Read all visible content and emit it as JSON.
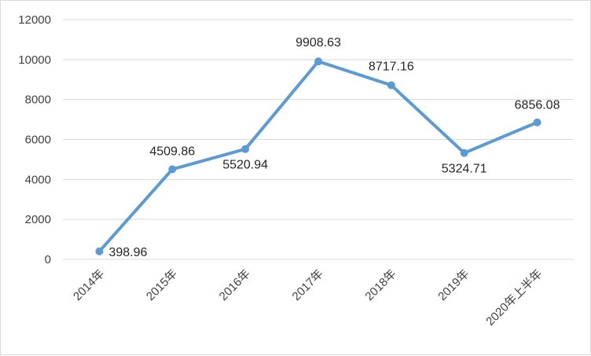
{
  "chart_data": {
    "type": "line",
    "title": "",
    "xlabel": "",
    "ylabel": "",
    "categories": [
      "2014年",
      "2015年",
      "2016年",
      "2017年",
      "2018年",
      "2019年",
      "2020年上半年"
    ],
    "values": [
      398.96,
      4509.86,
      5520.94,
      9908.63,
      8717.16,
      5324.71,
      6856.08
    ],
    "data_labels": [
      "398.96",
      "4509.86",
      "5520.94",
      "9908.63",
      "8717.16",
      "5324.71",
      "6856.08"
    ],
    "ylim": [
      0,
      12000
    ],
    "yticks": [
      0,
      2000,
      4000,
      6000,
      8000,
      10000,
      12000
    ],
    "ytick_labels": [
      "0",
      "2000",
      "4000",
      "6000",
      "8000",
      "10000",
      "12000"
    ],
    "grid": true,
    "legend": "none",
    "line_color": "#5b9bd5",
    "markers": true
  }
}
